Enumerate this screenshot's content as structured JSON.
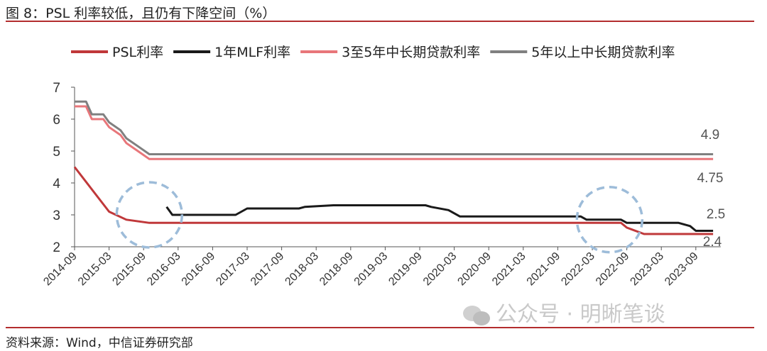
{
  "header": {
    "title": "图 8：PSL 利率较低，且仍有下降空间（%）"
  },
  "footer": {
    "source": "资料来源：Wind，中信证券研究部"
  },
  "watermark": {
    "text": "公众号 · 明晰笔谈",
    "icon": "wechat-icon"
  },
  "colors": {
    "accent": "#b32d2e"
  },
  "chart_data": {
    "type": "line",
    "title": "",
    "xlabel": "",
    "ylabel": "",
    "ylim": [
      2,
      7
    ],
    "yticks": [
      "2",
      "3",
      "4",
      "5",
      "6",
      "7"
    ],
    "xticks": [
      "2014-09",
      "2015-03",
      "2015-09",
      "2016-03",
      "2016-09",
      "2017-03",
      "2017-09",
      "2018-03",
      "2018-09",
      "2019-03",
      "2019-09",
      "2020-03",
      "2020-09",
      "2021-03",
      "2021-09",
      "2022-03",
      "2022-09",
      "2023-03",
      "2023-09"
    ],
    "grid": false,
    "legend_position": "top",
    "series": [
      {
        "name": "PSL利率",
        "color": "#c0383a",
        "width": 3,
        "points": [
          [
            "2014-09",
            4.5
          ],
          [
            "2015-03",
            3.1
          ],
          [
            "2015-06",
            2.85
          ],
          [
            "2015-10",
            2.75
          ],
          [
            "2022-08",
            2.75
          ],
          [
            "2022-09",
            2.6
          ],
          [
            "2022-12",
            2.4
          ],
          [
            "2023-12",
            2.4
          ]
        ]
      },
      {
        "name": "1年MLF利率",
        "color": "#1a1a1a",
        "width": 3,
        "points": [
          [
            "2016-01",
            3.25
          ],
          [
            "2016-02",
            3.0
          ],
          [
            "2017-01",
            3.0
          ],
          [
            "2017-02",
            3.1
          ],
          [
            "2017-03",
            3.2
          ],
          [
            "2017-12",
            3.2
          ],
          [
            "2018-01",
            3.25
          ],
          [
            "2018-06",
            3.3
          ],
          [
            "2019-10",
            3.3
          ],
          [
            "2019-11",
            3.25
          ],
          [
            "2020-02",
            3.15
          ],
          [
            "2020-04",
            2.95
          ],
          [
            "2022-01",
            2.95
          ],
          [
            "2022-02",
            2.85
          ],
          [
            "2022-08",
            2.85
          ],
          [
            "2022-09",
            2.75
          ],
          [
            "2023-06",
            2.75
          ],
          [
            "2023-08",
            2.65
          ],
          [
            "2023-09",
            2.5
          ],
          [
            "2023-12",
            2.5
          ]
        ]
      },
      {
        "name": "3至5年中长期贷款利率",
        "color": "#e8767a",
        "width": 3,
        "points": [
          [
            "2014-09",
            6.4
          ],
          [
            "2014-11",
            6.4
          ],
          [
            "2014-12",
            6.0
          ],
          [
            "2015-02",
            6.0
          ],
          [
            "2015-03",
            5.75
          ],
          [
            "2015-05",
            5.5
          ],
          [
            "2015-06",
            5.25
          ],
          [
            "2015-08",
            5.0
          ],
          [
            "2015-10",
            4.75
          ],
          [
            "2023-12",
            4.75
          ]
        ]
      },
      {
        "name": "5年以上中长期贷款利率",
        "color": "#808080",
        "width": 3,
        "points": [
          [
            "2014-09",
            6.55
          ],
          [
            "2014-11",
            6.55
          ],
          [
            "2014-12",
            6.15
          ],
          [
            "2015-02",
            6.15
          ],
          [
            "2015-03",
            5.9
          ],
          [
            "2015-05",
            5.65
          ],
          [
            "2015-06",
            5.4
          ],
          [
            "2015-08",
            5.15
          ],
          [
            "2015-10",
            4.9
          ],
          [
            "2023-12",
            4.9
          ]
        ]
      }
    ],
    "annotations": [
      {
        "text": "4.9",
        "x": "2023-10",
        "y": 4.9
      },
      {
        "text": "4.75",
        "x": "2023-10",
        "y": 4.75
      },
      {
        "text": "2.5",
        "x": "2023-10",
        "y": 2.5
      },
      {
        "text": "2.4",
        "x": "2023-10",
        "y": 2.4
      }
    ],
    "highlights": [
      {
        "shape": "dashed-circle",
        "center": [
          "2015-10",
          3.0
        ],
        "color": "#9dbcd9"
      },
      {
        "shape": "dashed-circle",
        "center": [
          "2022-06",
          2.85
        ],
        "color": "#9dbcd9"
      }
    ]
  }
}
